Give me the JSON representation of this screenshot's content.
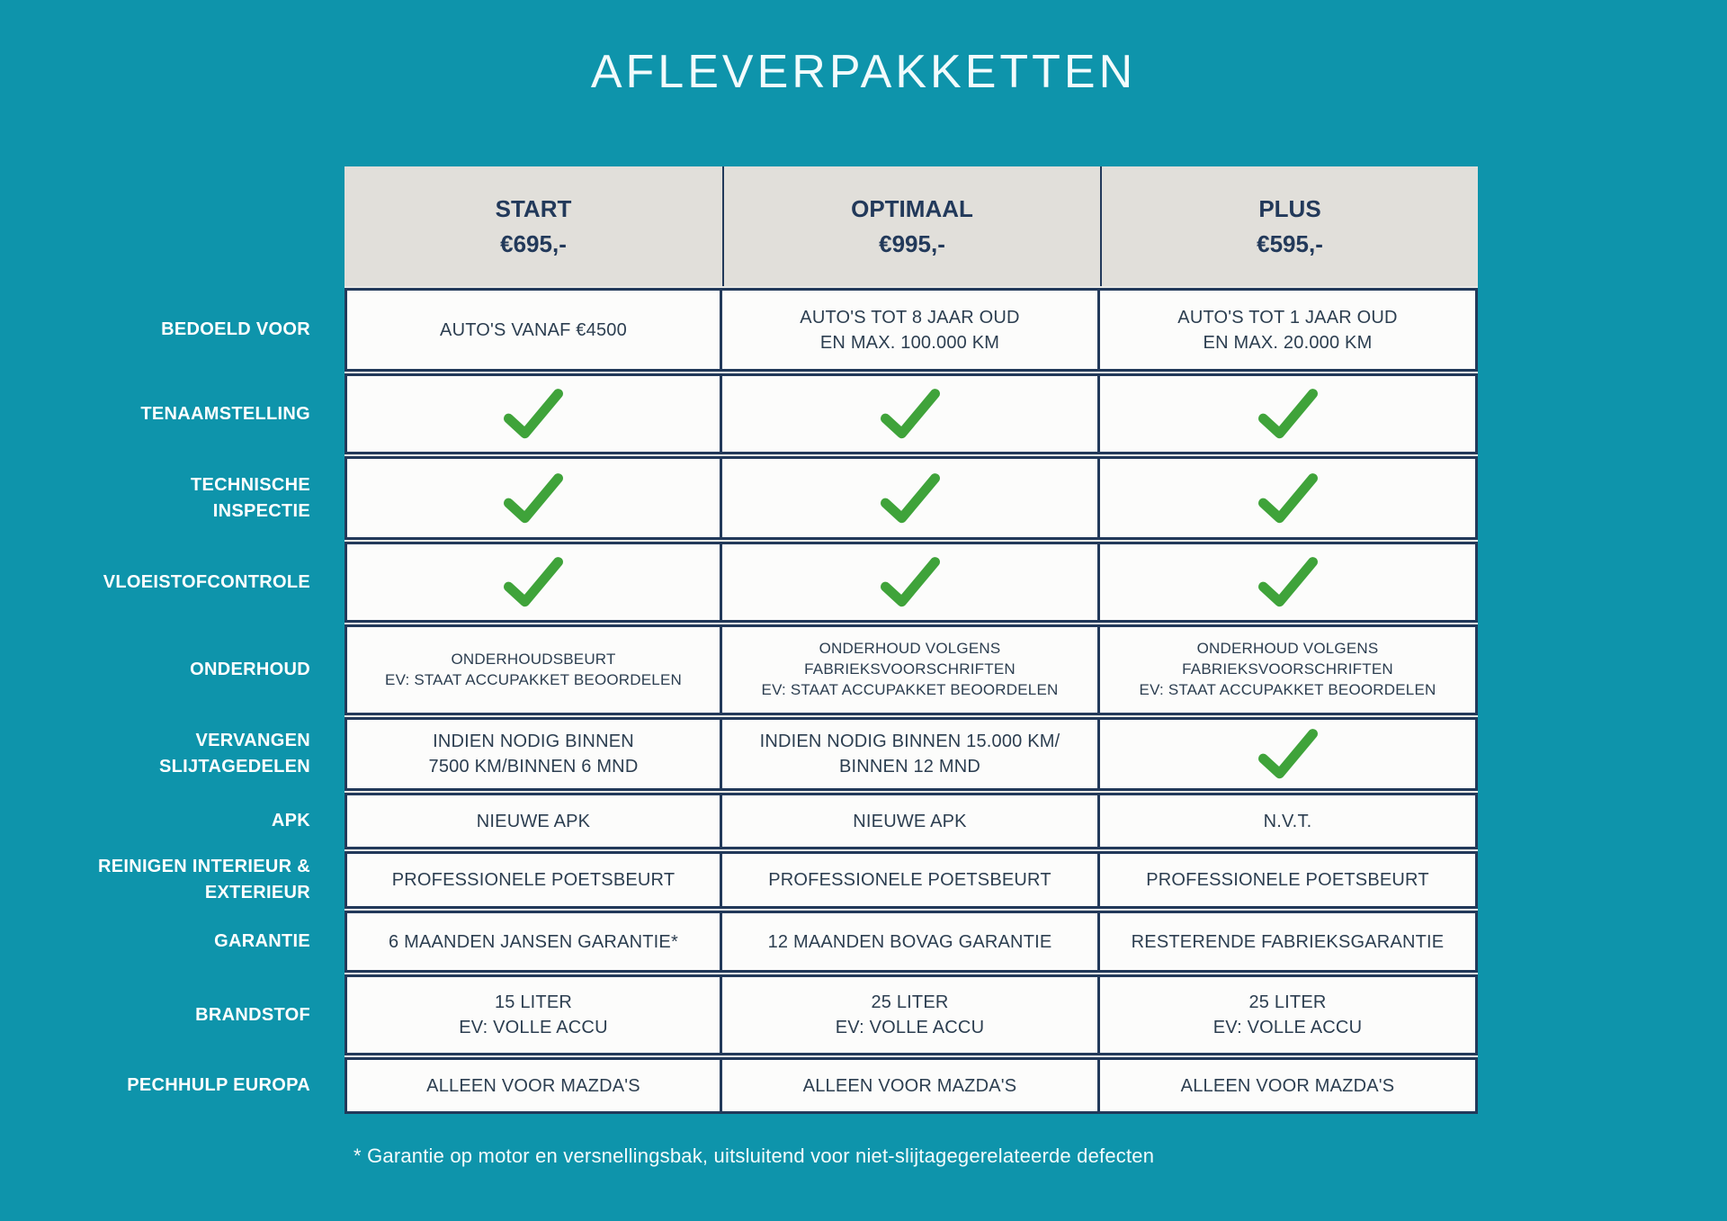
{
  "title": "AFLEVERPAKKETTEN",
  "colors": {
    "background_teal": "#0e94ab",
    "border_navy": "#22395a",
    "header_background": "#e1dfda",
    "cell_background": "#fcfcfb",
    "checkmark_green": "#3fa33a"
  },
  "icons": {
    "check": "green-checkmark"
  },
  "table": {
    "columns": [
      {
        "key": "start",
        "name": "START",
        "price": "€695,-"
      },
      {
        "key": "optimaal",
        "name": "OPTIMAAL",
        "price": "€995,-"
      },
      {
        "key": "plus",
        "name": "PLUS",
        "price": "€595,-"
      }
    ],
    "rows": [
      {
        "key": "bedoeld-voor",
        "label_lines": [
          "BEDOELD VOOR"
        ],
        "cells": [
          {
            "type": "text",
            "lines": [
              "AUTO'S VANAF €4500"
            ]
          },
          {
            "type": "text",
            "lines": [
              "AUTO'S TOT 8 JAAR OUD",
              "EN MAX. 100.000 KM"
            ]
          },
          {
            "type": "text",
            "lines": [
              "AUTO'S TOT 1 JAAR OUD",
              "EN MAX. 20.000 KM"
            ]
          }
        ]
      },
      {
        "key": "tenaamstelling",
        "label_lines": [
          "TENAAMSTELLING"
        ],
        "cells": [
          {
            "type": "check"
          },
          {
            "type": "check"
          },
          {
            "type": "check"
          }
        ]
      },
      {
        "key": "technische-inspectie",
        "label_lines": [
          "TECHNISCHE",
          "INSPECTIE"
        ],
        "cells": [
          {
            "type": "check"
          },
          {
            "type": "check"
          },
          {
            "type": "check"
          }
        ]
      },
      {
        "key": "vloeistofcontrole",
        "label_lines": [
          "VLOEISTOFCONTROLE"
        ],
        "cells": [
          {
            "type": "check"
          },
          {
            "type": "check"
          },
          {
            "type": "check"
          }
        ]
      },
      {
        "key": "onderhoud",
        "label_lines": [
          "ONDERHOUD"
        ],
        "small_text": true,
        "cells": [
          {
            "type": "text",
            "lines": [
              "ONDERHOUDSBEURT",
              "EV: STAAT ACCUPAKKET BEOORDELEN"
            ]
          },
          {
            "type": "text",
            "lines": [
              "ONDERHOUD VOLGENS",
              "FABRIEKSVOORSCHRIFTEN",
              "EV: STAAT ACCUPAKKET BEOORDELEN"
            ]
          },
          {
            "type": "text",
            "lines": [
              "ONDERHOUD VOLGENS",
              "FABRIEKSVOORSCHRIFTEN",
              "EV: STAAT ACCUPAKKET BEOORDELEN"
            ]
          }
        ]
      },
      {
        "key": "vervangen-slijtagedelen",
        "label_lines": [
          "VERVANGEN",
          "SLIJTAGEDELEN"
        ],
        "cells": [
          {
            "type": "text",
            "lines": [
              "INDIEN NODIG BINNEN",
              "7500 KM/BINNEN 6 MND"
            ]
          },
          {
            "type": "text",
            "lines": [
              "INDIEN NODIG BINNEN 15.000 KM/",
              "BINNEN 12 MND"
            ]
          },
          {
            "type": "check"
          }
        ]
      },
      {
        "key": "apk",
        "label_lines": [
          "APK"
        ],
        "cells": [
          {
            "type": "text",
            "lines": [
              "NIEUWE APK"
            ]
          },
          {
            "type": "text",
            "lines": [
              "NIEUWE APK"
            ]
          },
          {
            "type": "text",
            "lines": [
              "N.V.T."
            ]
          }
        ]
      },
      {
        "key": "reinigen-interieur-exterieur",
        "label_lines": [
          "REINIGEN INTERIEUR &",
          "EXTERIEUR"
        ],
        "cells": [
          {
            "type": "text",
            "lines": [
              "PROFESSIONELE POETSBEURT"
            ]
          },
          {
            "type": "text",
            "lines": [
              "PROFESSIONELE POETSBEURT"
            ]
          },
          {
            "type": "text",
            "lines": [
              "PROFESSIONELE POETSBEURT"
            ]
          }
        ]
      },
      {
        "key": "garantie",
        "label_lines": [
          "GARANTIE"
        ],
        "cells": [
          {
            "type": "text",
            "lines": [
              "6 MAANDEN JANSEN GARANTIE*"
            ]
          },
          {
            "type": "text",
            "lines": [
              "12 MAANDEN BOVAG GARANTIE"
            ]
          },
          {
            "type": "text",
            "lines": [
              "RESTERENDE FABRIEKSGARANTIE"
            ]
          }
        ]
      },
      {
        "key": "brandstof",
        "label_lines": [
          "BRANDSTOF"
        ],
        "cells": [
          {
            "type": "text",
            "lines": [
              "15 LITER",
              "EV: VOLLE ACCU"
            ]
          },
          {
            "type": "text",
            "lines": [
              "25 LITER",
              "EV: VOLLE ACCU"
            ]
          },
          {
            "type": "text",
            "lines": [
              "25 LITER",
              "EV: VOLLE ACCU"
            ]
          }
        ]
      },
      {
        "key": "pechhulp-europa",
        "label_lines": [
          "PECHHULP EUROPA"
        ],
        "cells": [
          {
            "type": "text",
            "lines": [
              "ALLEEN VOOR MAZDA'S"
            ]
          },
          {
            "type": "text",
            "lines": [
              "ALLEEN VOOR MAZDA'S"
            ]
          },
          {
            "type": "text",
            "lines": [
              "ALLEEN VOOR MAZDA'S"
            ]
          }
        ]
      }
    ]
  },
  "footnote": "* Garantie op motor en versnellingsbak, uitsluitend voor niet-slijtagegerelateerde defecten"
}
